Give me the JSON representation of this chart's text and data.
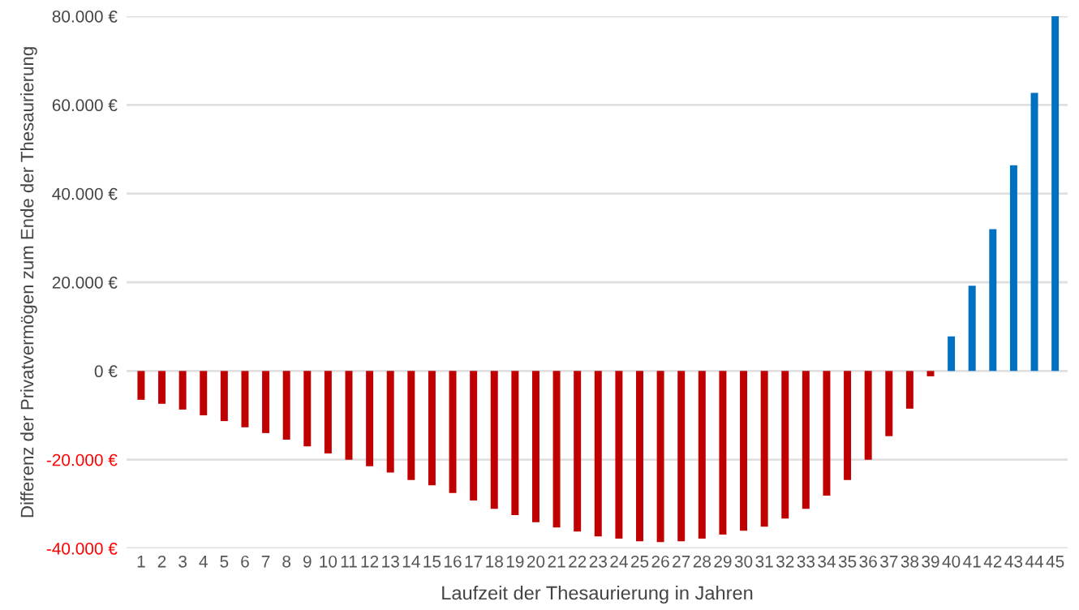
{
  "chart_data": {
    "type": "bar",
    "xlabel": "Laufzeit der Thesaurierung in Jahren",
    "ylabel": "Differenz der Privatvermögen zum Ende der Thesaurierung",
    "categories": [
      "1",
      "2",
      "3",
      "4",
      "5",
      "6",
      "7",
      "8",
      "9",
      "10",
      "11",
      "12",
      "13",
      "14",
      "15",
      "16",
      "17",
      "18",
      "19",
      "20",
      "21",
      "22",
      "23",
      "24",
      "25",
      "26",
      "27",
      "28",
      "29",
      "30",
      "31",
      "32",
      "33",
      "34",
      "35",
      "36",
      "37",
      "38",
      "39",
      "40",
      "41",
      "42",
      "43",
      "44",
      "45"
    ],
    "values": [
      -6500,
      -7400,
      -8700,
      -10000,
      -11300,
      -12700,
      -14000,
      -15500,
      -17000,
      -18600,
      -20000,
      -21500,
      -22900,
      -24600,
      -25800,
      -27500,
      -29200,
      -31100,
      -32500,
      -34100,
      -35300,
      -36200,
      -37300,
      -37800,
      -38400,
      -38600,
      -38400,
      -37800,
      -36900,
      -36000,
      -35100,
      -33300,
      -31100,
      -28100,
      -24600,
      -20000,
      -14700,
      -8500,
      -1200,
      7800,
      19200,
      32000,
      46400,
      62700,
      80000
    ],
    "colors": [
      "#c00000",
      "#c00000",
      "#c00000",
      "#c00000",
      "#c00000",
      "#c00000",
      "#c00000",
      "#c00000",
      "#c00000",
      "#c00000",
      "#c00000",
      "#c00000",
      "#c00000",
      "#c00000",
      "#c00000",
      "#c00000",
      "#c00000",
      "#c00000",
      "#c00000",
      "#c00000",
      "#c00000",
      "#c00000",
      "#c00000",
      "#c00000",
      "#c00000",
      "#c00000",
      "#c00000",
      "#c00000",
      "#c00000",
      "#c00000",
      "#c00000",
      "#c00000",
      "#c00000",
      "#c00000",
      "#c00000",
      "#c00000",
      "#c00000",
      "#c00000",
      "#c00000",
      "#0070c0",
      "#0070c0",
      "#0070c0",
      "#0070c0",
      "#0070c0",
      "#0070c0"
    ],
    "ylim": [
      -40000,
      80000
    ],
    "yticks": [
      {
        "value": -40000,
        "label": "-40.000 €"
      },
      {
        "value": -20000,
        "label": "-20.000 €"
      },
      {
        "value": 0,
        "label": "0 €"
      },
      {
        "value": 20000,
        "label": "20.000 €"
      },
      {
        "value": 40000,
        "label": "40.000 €"
      },
      {
        "value": 60000,
        "label": "60.000 €"
      },
      {
        "value": 80000,
        "label": "80.000 €"
      }
    ],
    "grid": "y",
    "legend": false
  }
}
